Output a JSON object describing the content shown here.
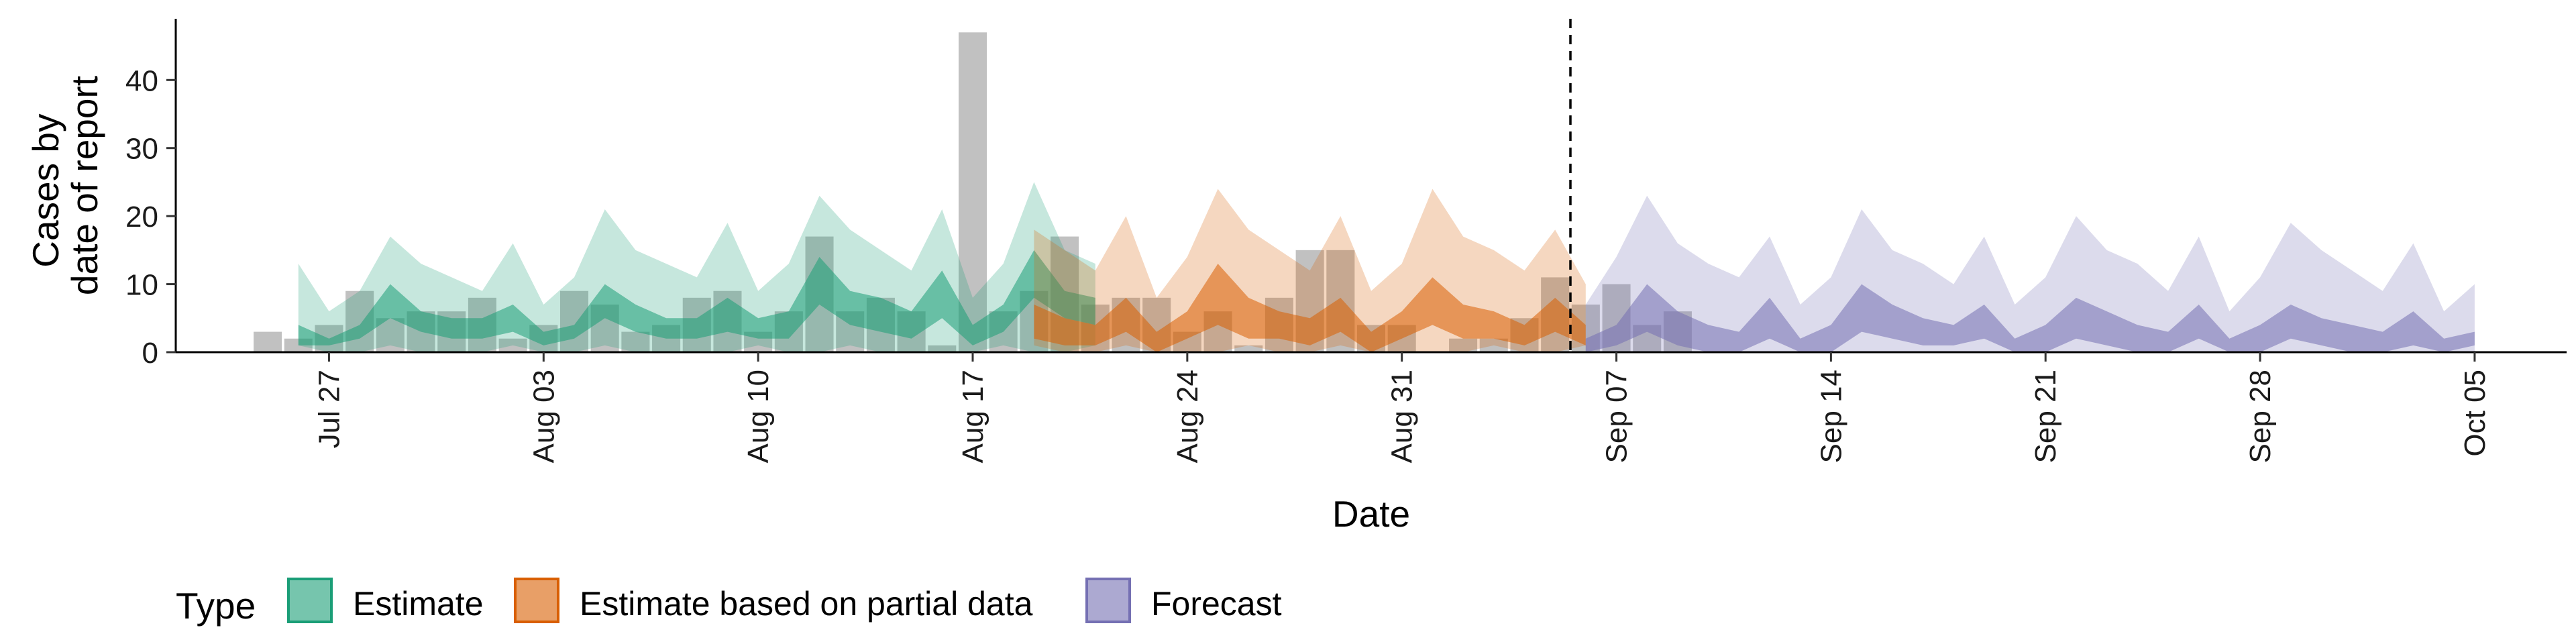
{
  "chart_data": {
    "type": "area",
    "xlabel": "Date",
    "ylabel_lines": [
      "Cases by",
      "date of report"
    ],
    "ylim": [
      0,
      49
    ],
    "yticks": [
      0,
      10,
      20,
      30,
      40
    ],
    "x_range": [
      "2020-07-22",
      "2020-10-08"
    ],
    "x_ticks": [
      {
        "date": "2020-07-27",
        "label": "Jul 27"
      },
      {
        "date": "2020-08-03",
        "label": "Aug 03"
      },
      {
        "date": "2020-08-10",
        "label": "Aug 10"
      },
      {
        "date": "2020-08-17",
        "label": "Aug 17"
      },
      {
        "date": "2020-08-24",
        "label": "Aug 24"
      },
      {
        "date": "2020-08-31",
        "label": "Aug 31"
      },
      {
        "date": "2020-09-07",
        "label": "Sep 07"
      },
      {
        "date": "2020-09-14",
        "label": "Sep 14"
      },
      {
        "date": "2020-09-21",
        "label": "Sep 21"
      },
      {
        "date": "2020-09-28",
        "label": "Sep 28"
      },
      {
        "date": "2020-10-05",
        "label": "Oct 05"
      }
    ],
    "forecast_line_date": "2020-09-06",
    "grid": false,
    "legend": {
      "position": "bottom",
      "title": "Type",
      "entries": [
        "Estimate",
        "Estimate based on partial data",
        "Forecast"
      ]
    },
    "colors": {
      "Estimate": "#1b9e77",
      "Estimate based on partial data": "#d95f02",
      "Forecast": "#7570b3",
      "bars": "#a6a6a6"
    },
    "reported_cases": {
      "start_date": "2020-07-25",
      "values": [
        3,
        2,
        4,
        9,
        5,
        6,
        6,
        8,
        2,
        4,
        9,
        7,
        3,
        4,
        8,
        9,
        3,
        6,
        17,
        6,
        8,
        6,
        1,
        47,
        6,
        9,
        17,
        7,
        8,
        8,
        3,
        6,
        1,
        8,
        15,
        15,
        4,
        4,
        0,
        2,
        2,
        5,
        11,
        7,
        10,
        4,
        6
      ]
    },
    "series": [
      {
        "name": "Estimate",
        "start_date": "2020-07-26",
        "lower90": [
          1,
          0,
          0,
          1,
          0,
          0,
          0,
          1,
          0,
          0,
          1,
          0,
          0,
          0,
          0,
          1,
          0,
          0,
          1,
          0,
          0,
          0,
          0,
          1,
          0,
          0,
          1
        ],
        "upper90": [
          13,
          6,
          9,
          17,
          13,
          11,
          9,
          16,
          7,
          11,
          21,
          15,
          13,
          11,
          19,
          9,
          13,
          23,
          18,
          15,
          12,
          21,
          8,
          13,
          25,
          15,
          13
        ],
        "lower50": [
          1,
          1,
          2,
          5,
          3,
          2,
          2,
          3,
          1,
          2,
          5,
          3,
          2,
          2,
          3,
          2,
          2,
          7,
          4,
          3,
          2,
          5,
          1,
          3,
          8,
          5,
          4
        ],
        "upper50": [
          4,
          2,
          4,
          10,
          6,
          5,
          5,
          7,
          3,
          4,
          10,
          7,
          5,
          5,
          8,
          5,
          6,
          14,
          9,
          8,
          6,
          12,
          4,
          7,
          15,
          9,
          8
        ]
      },
      {
        "name": "Estimate based on partial data",
        "start_date": "2020-08-19",
        "lower90": [
          1,
          0,
          0,
          1,
          0,
          0,
          0,
          1,
          0,
          0,
          1,
          0,
          0,
          0,
          0,
          1,
          0,
          0,
          1
        ],
        "upper90": [
          18,
          15,
          12,
          20,
          8,
          14,
          24,
          18,
          15,
          12,
          20,
          9,
          13,
          24,
          17,
          15,
          12,
          18,
          10
        ],
        "lower50": [
          2,
          1,
          1,
          3,
          0,
          2,
          4,
          2,
          2,
          1,
          3,
          0,
          2,
          4,
          2,
          2,
          1,
          3,
          1
        ],
        "upper50": [
          7,
          5,
          4,
          8,
          3,
          6,
          13,
          8,
          6,
          5,
          8,
          3,
          6,
          11,
          7,
          6,
          4,
          8,
          4
        ]
      },
      {
        "name": "Forecast",
        "start_date": "2020-09-06",
        "lower90": [
          0,
          0,
          0,
          0,
          0,
          0,
          0,
          0,
          0,
          0,
          0,
          0,
          0,
          0,
          0,
          0,
          0,
          0,
          0,
          0,
          0,
          0,
          0,
          0,
          0,
          0,
          0,
          0,
          0,
          0,
          0,
          0
        ],
        "upper90": [
          7,
          14,
          23,
          16,
          13,
          11,
          17,
          7,
          11,
          21,
          15,
          13,
          10,
          17,
          7,
          11,
          20,
          15,
          13,
          9,
          17,
          6,
          11,
          19,
          15,
          12,
          9,
          16,
          6,
          10,
          0,
          0
        ],
        "lower50": [
          0,
          1,
          3,
          1,
          0,
          0,
          2,
          0,
          0,
          3,
          2,
          1,
          1,
          2,
          0,
          0,
          2,
          1,
          0,
          0,
          2,
          0,
          0,
          2,
          1,
          0,
          0,
          1,
          0,
          1,
          0,
          0
        ],
        "upper50": [
          2,
          4,
          10,
          6,
          4,
          3,
          8,
          2,
          4,
          10,
          7,
          5,
          4,
          7,
          2,
          4,
          8,
          6,
          4,
          3,
          7,
          2,
          4,
          7,
          5,
          4,
          3,
          6,
          2,
          3,
          0,
          0
        ]
      }
    ]
  }
}
